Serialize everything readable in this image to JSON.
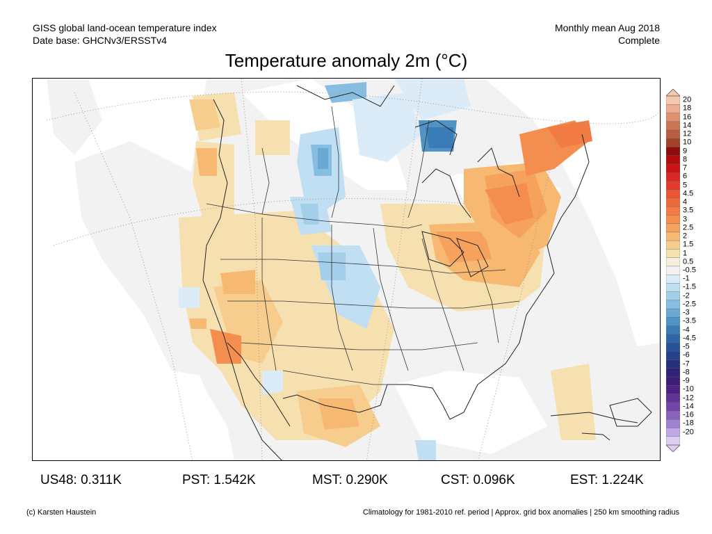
{
  "header": {
    "line1_left": "GISS global land-ocean temperature index",
    "line2_left": "Date base: GHCNv3/ERSSTv4",
    "line1_right": "Monthly mean Aug 2018",
    "line2_right": "Complete"
  },
  "title": "Temperature anomaly 2m (°C)",
  "colorbar": {
    "labels": [
      "20",
      "18",
      "16",
      "14",
      "12",
      "10",
      "9",
      "8",
      "7",
      "6",
      "5",
      "4.5",
      "4",
      "3.5",
      "3",
      "2.5",
      "2",
      "1.5",
      "1",
      "0.5",
      "-0.5",
      "-1",
      "-1.5",
      "-2",
      "-2.5",
      "-3",
      "-3.5",
      "-4",
      "-4.5",
      "-5",
      "-6",
      "-7",
      "-8",
      "-9",
      "-10",
      "-12",
      "-14",
      "-16",
      "-18",
      "-20"
    ],
    "colors": [
      "#f7c8b0",
      "#eeac90",
      "#e09070",
      "#cc7656",
      "#b95e42",
      "#a2422c",
      "#920a0a",
      "#b20c0c",
      "#c81414",
      "#d92626",
      "#e33c2c",
      "#ea5634",
      "#ee6a3a",
      "#f27c44",
      "#f48e4e",
      "#f6a25c",
      "#f7b872",
      "#f7cd8e",
      "#f6e0b0",
      "#f4efdc",
      "#f2f2f2",
      "#dbecf8",
      "#c0dff2",
      "#a3cfea",
      "#86bde0",
      "#6aa9d4",
      "#5094c6",
      "#3b7cb6",
      "#2e66a8",
      "#27529a",
      "#26408c",
      "#262f7e",
      "#2e2376",
      "#3e1d7a",
      "#4e2186",
      "#5f3296",
      "#7246a8",
      "#8862bc",
      "#a080d0",
      "#c0a8e6",
      "#dccdf2"
    ]
  },
  "stats": [
    {
      "label": "US48: 0.311K"
    },
    {
      "label": "PST: 1.542K"
    },
    {
      "label": "MST: 0.290K"
    },
    {
      "label": "CST: 0.096K"
    },
    {
      "label": "EST: 1.224K"
    }
  ],
  "footer": {
    "left": "(c) Karsten Haustein",
    "right": "Climatology for 1981-2010 ref. period | Approx. grid box anomalies | 250 km smoothing radius"
  }
}
